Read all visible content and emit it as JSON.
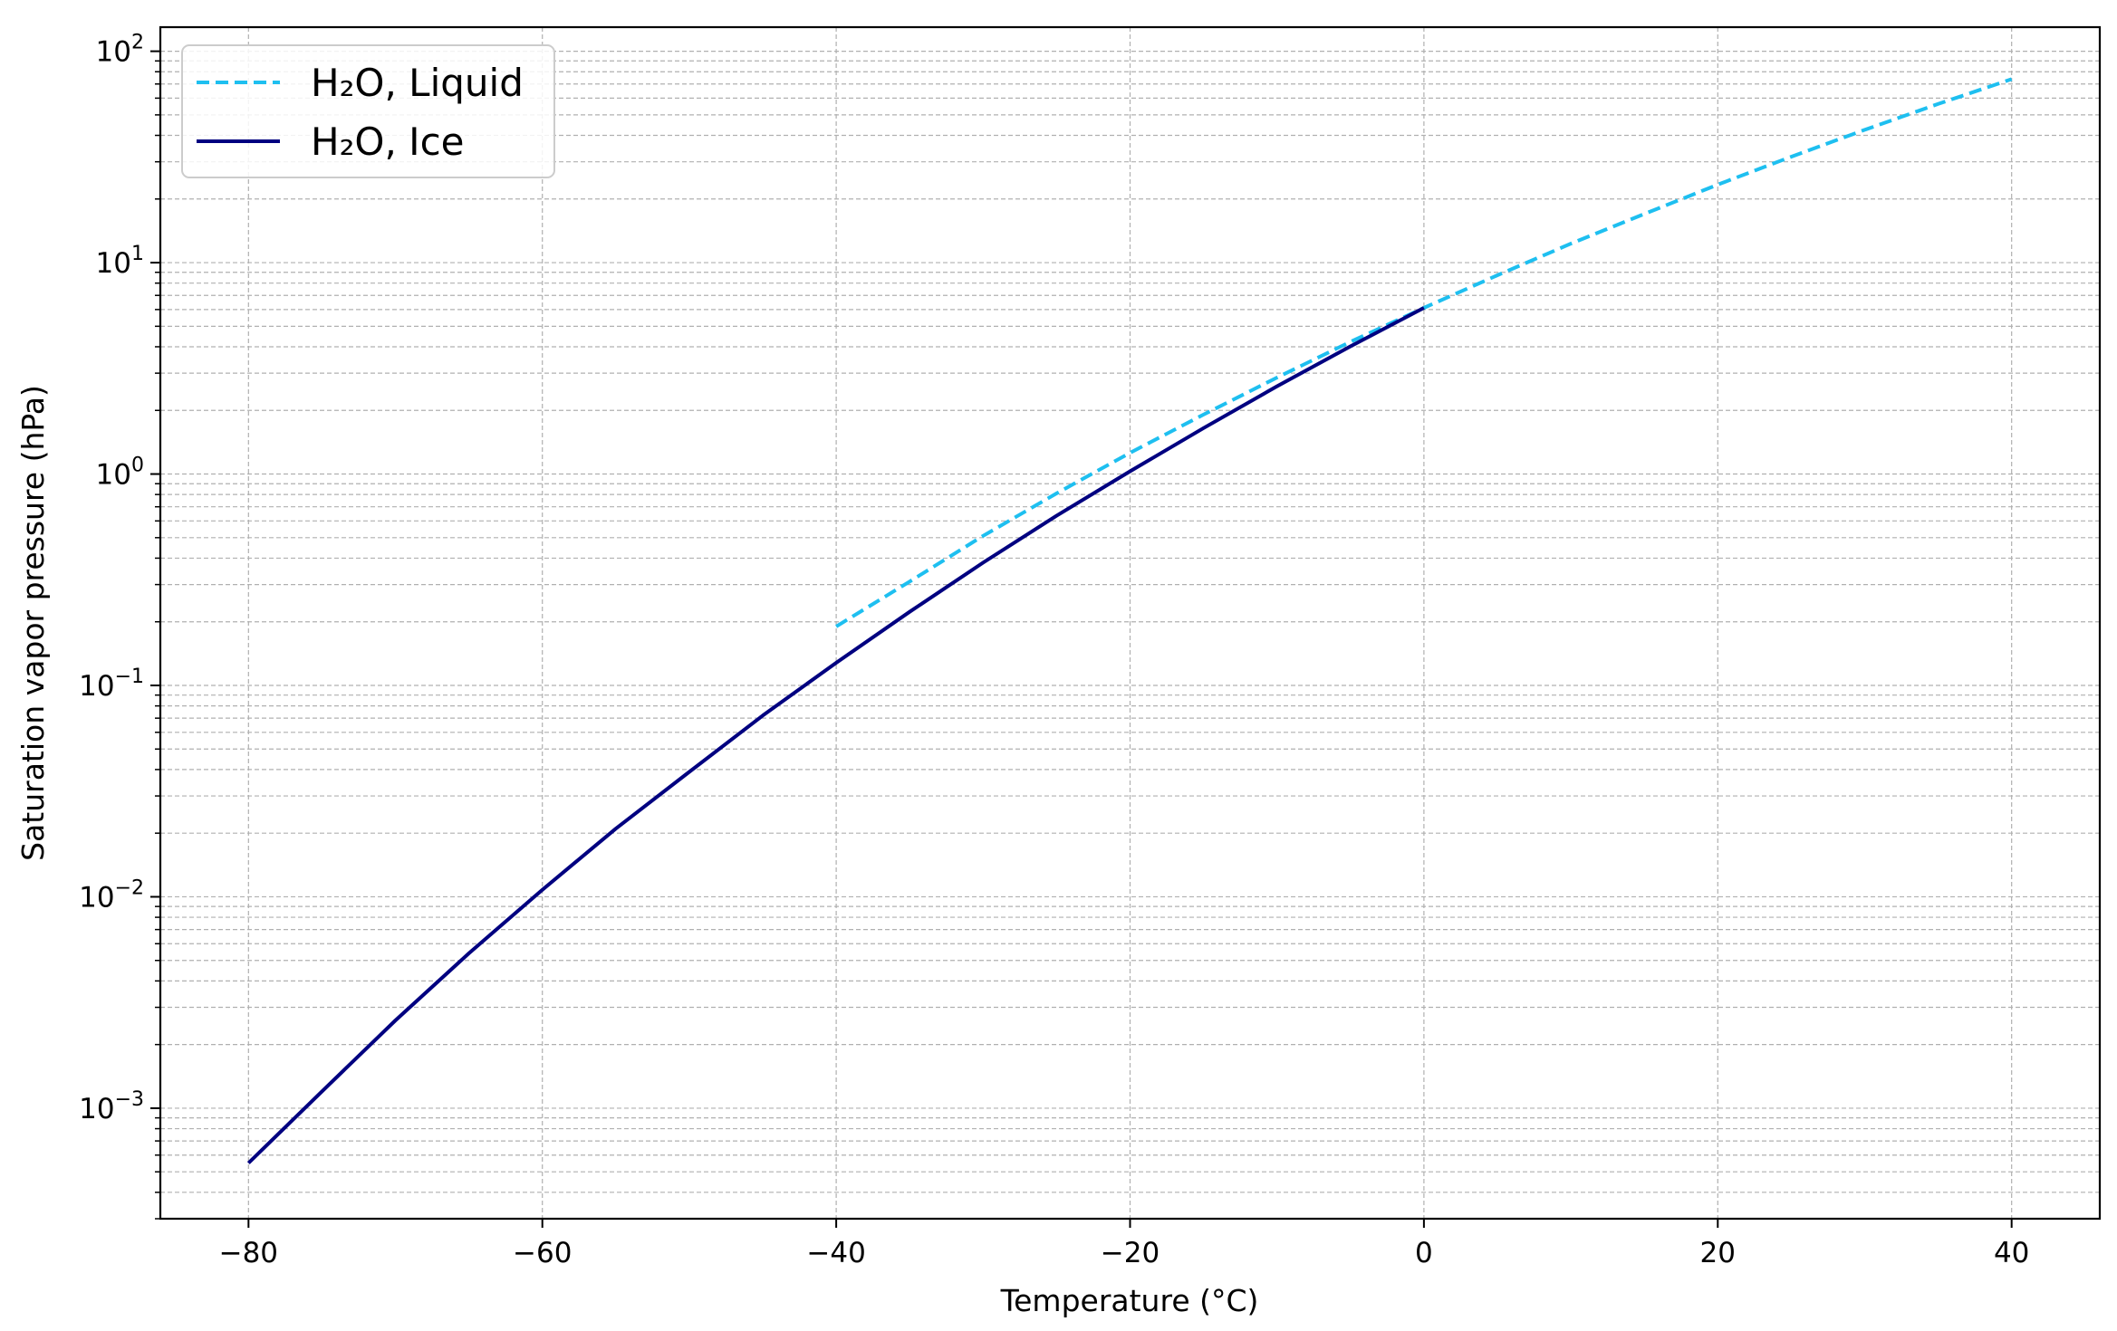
{
  "chart_data": {
    "type": "line",
    "title": "",
    "xlabel": "Temperature (°C)",
    "ylabel": "Saturation vapor pressure (hPa)",
    "xlim": [
      -86,
      46
    ],
    "ylim": [
      0.0003,
      130
    ],
    "yscale": "log",
    "grid": true,
    "legend_position": "top-left",
    "x_ticks": [
      -80,
      -60,
      -40,
      -20,
      0,
      20,
      40
    ],
    "x_tick_labels": [
      "−80",
      "−60",
      "−40",
      "−20",
      "0",
      "20",
      "40"
    ],
    "y_ticks": [
      {
        "value": 0.001,
        "base": "10",
        "exp": "−3"
      },
      {
        "value": 0.01,
        "base": "10",
        "exp": "−2"
      },
      {
        "value": 0.1,
        "base": "10",
        "exp": "−1"
      },
      {
        "value": 1,
        "base": "10",
        "exp": "0"
      },
      {
        "value": 10,
        "base": "10",
        "exp": "1"
      },
      {
        "value": 100,
        "base": "10",
        "exp": "2"
      }
    ],
    "series": [
      {
        "name": "H₂O, Liquid",
        "color": "#1ebff0",
        "style": "dashed",
        "x": [
          -40,
          -35,
          -30,
          -25,
          -20,
          -15,
          -10,
          -5,
          0,
          5,
          10,
          15,
          20,
          25,
          30,
          35,
          40
        ],
        "y": [
          0.19,
          0.31,
          0.51,
          0.81,
          1.26,
          1.91,
          2.86,
          4.22,
          6.11,
          8.72,
          12.3,
          17.0,
          23.4,
          31.7,
          42.5,
          56.3,
          73.8
        ]
      },
      {
        "name": "H₂O, Ice",
        "color": "#000080",
        "style": "solid",
        "x": [
          -80,
          -75,
          -70,
          -65,
          -60,
          -55,
          -50,
          -45,
          -40,
          -35,
          -30,
          -25,
          -20,
          -15,
          -10,
          -5,
          0
        ],
        "y": [
          0.00055,
          0.0012,
          0.0026,
          0.0054,
          0.0108,
          0.021,
          0.039,
          0.072,
          0.128,
          0.223,
          0.381,
          0.635,
          1.03,
          1.65,
          2.6,
          4.02,
          6.11
        ]
      }
    ]
  }
}
